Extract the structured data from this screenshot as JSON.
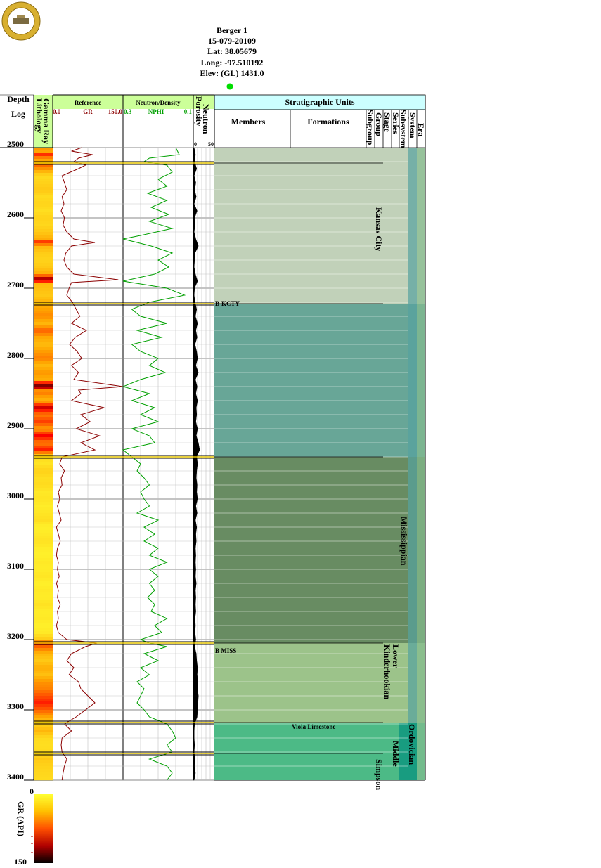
{
  "header": {
    "lines": [
      "Berger 1",
      "15-079-20109",
      "Lat: 38.05679",
      "Long: -97.510192",
      "Elev: (GL) 1431.0"
    ],
    "status_dot_color": "#00dd00"
  },
  "logo": {
    "icon": "survey-seal-icon",
    "color": "#d8b030"
  },
  "columns": {
    "depth": "Depth",
    "log": "Log",
    "lithology": "Lithology",
    "gamma_ray": "Gamma Ray",
    "reference": "Reference",
    "neutron_density": "Neutron/Density",
    "porosity": "Porosity",
    "neutron": "Neutron",
    "strat_units": "Stratigraphic Units",
    "members": "Members",
    "formations": "Formations",
    "subgroup": "Subgroup",
    "group": "Group",
    "stage": "Stage",
    "series": "Series",
    "subsystem": "Subsystem",
    "system": "System",
    "era": "Era"
  },
  "scales": {
    "gr": {
      "min": "0.0",
      "label": "GR",
      "max": "150.0",
      "color": "#8b0000"
    },
    "nphi": {
      "min": "0.3",
      "label": "NPHI",
      "max": "-0.1",
      "color": "#00a000"
    },
    "porosity": {
      "min": "0",
      "max": "50"
    }
  },
  "chart_data": {
    "type": "line",
    "depth_range": [
      2500,
      3400
    ],
    "depth_ticks": [
      "2500",
      "2600",
      "2700",
      "2800",
      "2900",
      "3000",
      "3100",
      "3200",
      "3300",
      "3400"
    ],
    "tops": [
      {
        "depth": 2711,
        "label": "B-KCTY"
      },
      {
        "depth": 3205,
        "label": "B MISS"
      }
    ],
    "intervals": [
      {
        "top": 2500,
        "bottom": 2722,
        "color": "#c1d1b9"
      },
      {
        "top": 2722,
        "bottom": 2940,
        "color": "#68a697"
      },
      {
        "top": 2940,
        "bottom": 3205,
        "color": "#688c62"
      },
      {
        "top": 3205,
        "bottom": 3318,
        "color": "#9cc38a"
      },
      {
        "top": 3318,
        "bottom": 3400,
        "color": "#4cba86"
      }
    ],
    "units": {
      "subgroup": [
        {
          "top": 2500,
          "bottom": 2722,
          "label": "Kansas City"
        },
        {
          "top": 3318,
          "bottom": 3400,
          "label": "Simpson"
        }
      ],
      "formations": [
        {
          "top": 3318,
          "bottom": 3322,
          "label": "Viola Limestone"
        }
      ],
      "stage": [
        {
          "top": 3205,
          "bottom": 3318,
          "label": "Kinderhookian"
        }
      ],
      "series": [
        {
          "top": 3205,
          "bottom": 3240,
          "label": "Lower"
        },
        {
          "top": 3342,
          "bottom": 3400,
          "label": "Middle"
        }
      ],
      "subsystem": [
        {
          "top": 3025,
          "bottom": 3100,
          "label": "Mississippian"
        }
      ],
      "system": [
        {
          "top": 3318,
          "bottom": 3400,
          "label": "Ordovician"
        }
      ]
    },
    "colorbar": {
      "label": "GR (API)",
      "min": "0",
      "max": "150"
    },
    "gr_profile": [
      [
        2500,
        62
      ],
      [
        2505,
        40
      ],
      [
        2510,
        85
      ],
      [
        2515,
        55
      ],
      [
        2520,
        45
      ],
      [
        2525,
        70
      ],
      [
        2530,
        55
      ],
      [
        2540,
        20
      ],
      [
        2550,
        25
      ],
      [
        2560,
        30
      ],
      [
        2570,
        20
      ],
      [
        2580,
        24
      ],
      [
        2590,
        18
      ],
      [
        2600,
        25
      ],
      [
        2610,
        22
      ],
      [
        2620,
        30
      ],
      [
        2630,
        45
      ],
      [
        2635,
        90
      ],
      [
        2640,
        40
      ],
      [
        2650,
        28
      ],
      [
        2660,
        24
      ],
      [
        2670,
        30
      ],
      [
        2680,
        45
      ],
      [
        2688,
        140
      ],
      [
        2692,
        40
      ],
      [
        2700,
        35
      ],
      [
        2710,
        30
      ],
      [
        2720,
        42
      ],
      [
        2730,
        50
      ],
      [
        2740,
        58
      ],
      [
        2750,
        40
      ],
      [
        2760,
        72
      ],
      [
        2770,
        48
      ],
      [
        2780,
        36
      ],
      [
        2790,
        52
      ],
      [
        2800,
        62
      ],
      [
        2810,
        40
      ],
      [
        2820,
        55
      ],
      [
        2830,
        45
      ],
      [
        2840,
        150
      ],
      [
        2845,
        55
      ],
      [
        2850,
        60
      ],
      [
        2860,
        40
      ],
      [
        2870,
        110
      ],
      [
        2880,
        60
      ],
      [
        2890,
        80
      ],
      [
        2900,
        50
      ],
      [
        2910,
        100
      ],
      [
        2920,
        60
      ],
      [
        2930,
        90
      ],
      [
        2940,
        20
      ],
      [
        2950,
        15
      ],
      [
        2960,
        25
      ],
      [
        2970,
        18
      ],
      [
        2980,
        20
      ],
      [
        2990,
        12
      ],
      [
        3000,
        15
      ],
      [
        3010,
        10
      ],
      [
        3020,
        14
      ],
      [
        3030,
        18
      ],
      [
        3040,
        8
      ],
      [
        3050,
        12
      ],
      [
        3060,
        16
      ],
      [
        3070,
        10
      ],
      [
        3080,
        8
      ],
      [
        3090,
        12
      ],
      [
        3100,
        10
      ],
      [
        3110,
        14
      ],
      [
        3120,
        8
      ],
      [
        3130,
        12
      ],
      [
        3140,
        10
      ],
      [
        3150,
        16
      ],
      [
        3160,
        10
      ],
      [
        3170,
        12
      ],
      [
        3180,
        8
      ],
      [
        3190,
        12
      ],
      [
        3200,
        30
      ],
      [
        3205,
        95
      ],
      [
        3210,
        70
      ],
      [
        3220,
        40
      ],
      [
        3230,
        30
      ],
      [
        3240,
        45
      ],
      [
        3250,
        35
      ],
      [
        3260,
        55
      ],
      [
        3270,
        60
      ],
      [
        3280,
        75
      ],
      [
        3290,
        90
      ],
      [
        3300,
        70
      ],
      [
        3310,
        50
      ],
      [
        3320,
        25
      ],
      [
        3330,
        40
      ],
      [
        3340,
        20
      ],
      [
        3350,
        18
      ],
      [
        3360,
        20
      ],
      [
        3370,
        30
      ],
      [
        3380,
        25
      ],
      [
        3390,
        22
      ],
      [
        3400,
        20
      ]
    ],
    "nphi_profile": [
      [
        2500,
        0.0
      ],
      [
        2510,
        -0.02
      ],
      [
        2515,
        0.15
      ],
      [
        2520,
        0.18
      ],
      [
        2525,
        0.05
      ],
      [
        2535,
        0.02
      ],
      [
        2545,
        0.1
      ],
      [
        2555,
        0.05
      ],
      [
        2565,
        0.16
      ],
      [
        2575,
        0.05
      ],
      [
        2585,
        0.14
      ],
      [
        2595,
        0.04
      ],
      [
        2605,
        0.15
      ],
      [
        2615,
        0.02
      ],
      [
        2625,
        0.2
      ],
      [
        2630,
        0.3
      ],
      [
        2640,
        0.14
      ],
      [
        2650,
        0.02
      ],
      [
        2660,
        0.1
      ],
      [
        2670,
        0.04
      ],
      [
        2680,
        0.12
      ],
      [
        2690,
        0.3
      ],
      [
        2700,
        0.05
      ],
      [
        2710,
        -0.05
      ],
      [
        2720,
        0.15
      ],
      [
        2730,
        0.25
      ],
      [
        2740,
        0.2
      ],
      [
        2750,
        0.05
      ],
      [
        2760,
        0.22
      ],
      [
        2770,
        0.08
      ],
      [
        2780,
        0.25
      ],
      [
        2790,
        0.2
      ],
      [
        2800,
        0.1
      ],
      [
        2810,
        0.15
      ],
      [
        2820,
        0.06
      ],
      [
        2830,
        0.2
      ],
      [
        2840,
        0.3
      ],
      [
        2850,
        0.15
      ],
      [
        2860,
        0.25
      ],
      [
        2870,
        0.12
      ],
      [
        2880,
        0.2
      ],
      [
        2890,
        0.1
      ],
      [
        2900,
        0.25
      ],
      [
        2910,
        0.15
      ],
      [
        2920,
        0.12
      ],
      [
        2930,
        0.3
      ],
      [
        2940,
        0.25
      ],
      [
        2950,
        0.2
      ],
      [
        2960,
        0.22
      ],
      [
        2970,
        0.18
      ],
      [
        2980,
        0.15
      ],
      [
        2990,
        0.2
      ],
      [
        3000,
        0.18
      ],
      [
        3010,
        0.15
      ],
      [
        3020,
        0.22
      ],
      [
        3030,
        0.1
      ],
      [
        3040,
        0.18
      ],
      [
        3050,
        0.12
      ],
      [
        3060,
        0.18
      ],
      [
        3070,
        0.1
      ],
      [
        3080,
        0.15
      ],
      [
        3090,
        0.05
      ],
      [
        3100,
        0.15
      ],
      [
        3110,
        0.1
      ],
      [
        3120,
        0.15
      ],
      [
        3130,
        0.12
      ],
      [
        3140,
        0.16
      ],
      [
        3150,
        0.12
      ],
      [
        3160,
        0.14
      ],
      [
        3170,
        0.05
      ],
      [
        3180,
        0.12
      ],
      [
        3190,
        0.08
      ],
      [
        3200,
        0.2
      ],
      [
        3205,
        0.15
      ],
      [
        3210,
        0.05
      ],
      [
        3220,
        0.18
      ],
      [
        3230,
        0.1
      ],
      [
        3240,
        0.2
      ],
      [
        3250,
        0.15
      ],
      [
        3260,
        0.22
      ],
      [
        3270,
        0.18
      ],
      [
        3280,
        0.2
      ],
      [
        3290,
        0.22
      ],
      [
        3300,
        0.18
      ],
      [
        3310,
        0.15
      ],
      [
        3320,
        0.05
      ],
      [
        3330,
        0.02
      ],
      [
        3340,
        0.0
      ],
      [
        3350,
        0.05
      ],
      [
        3360,
        0.02
      ],
      [
        3370,
        0.15
      ],
      [
        3380,
        0.05
      ],
      [
        3390,
        0.02
      ],
      [
        3400,
        0.05
      ]
    ],
    "porosity_profile": [
      [
        2500,
        2
      ],
      [
        2510,
        5
      ],
      [
        2520,
        3
      ],
      [
        2530,
        8
      ],
      [
        2540,
        2
      ],
      [
        2550,
        6
      ],
      [
        2560,
        3
      ],
      [
        2570,
        7
      ],
      [
        2580,
        2
      ],
      [
        2590,
        9
      ],
      [
        2600,
        3
      ],
      [
        2610,
        4
      ],
      [
        2620,
        2
      ],
      [
        2630,
        6
      ],
      [
        2640,
        12
      ],
      [
        2650,
        4
      ],
      [
        2660,
        3
      ],
      [
        2670,
        2
      ],
      [
        2680,
        5
      ],
      [
        2690,
        10
      ],
      [
        2700,
        3
      ],
      [
        2710,
        2
      ],
      [
        2720,
        4
      ],
      [
        2730,
        8
      ],
      [
        2740,
        5
      ],
      [
        2750,
        10
      ],
      [
        2760,
        6
      ],
      [
        2770,
        9
      ],
      [
        2780,
        4
      ],
      [
        2790,
        8
      ],
      [
        2800,
        10
      ],
      [
        2810,
        6
      ],
      [
        2820,
        12
      ],
      [
        2830,
        5
      ],
      [
        2840,
        9
      ],
      [
        2850,
        6
      ],
      [
        2860,
        10
      ],
      [
        2870,
        7
      ],
      [
        2880,
        8
      ],
      [
        2890,
        6
      ],
      [
        2900,
        10
      ],
      [
        2910,
        7
      ],
      [
        2920,
        12
      ],
      [
        2930,
        15
      ],
      [
        2940,
        8
      ],
      [
        2950,
        10
      ],
      [
        2960,
        8
      ],
      [
        2970,
        7
      ],
      [
        2980,
        9
      ],
      [
        2990,
        8
      ],
      [
        3000,
        10
      ],
      [
        3010,
        6
      ],
      [
        3020,
        9
      ],
      [
        3030,
        5
      ],
      [
        3040,
        8
      ],
      [
        3050,
        6
      ],
      [
        3060,
        7
      ],
      [
        3070,
        5
      ],
      [
        3080,
        6
      ],
      [
        3090,
        5
      ],
      [
        3100,
        6
      ],
      [
        3110,
        5
      ],
      [
        3120,
        7
      ],
      [
        3130,
        5
      ],
      [
        3140,
        6
      ],
      [
        3150,
        5
      ],
      [
        3160,
        6
      ],
      [
        3170,
        4
      ],
      [
        3180,
        5
      ],
      [
        3190,
        4
      ],
      [
        3200,
        6
      ],
      [
        3210,
        3
      ],
      [
        3220,
        7
      ],
      [
        3230,
        8
      ],
      [
        3240,
        10
      ],
      [
        3250,
        9
      ],
      [
        3260,
        11
      ],
      [
        3270,
        10
      ],
      [
        3280,
        12
      ],
      [
        3290,
        11
      ],
      [
        3300,
        10
      ],
      [
        3310,
        9
      ],
      [
        3320,
        3
      ],
      [
        3330,
        2
      ],
      [
        3340,
        2
      ],
      [
        3350,
        3
      ],
      [
        3360,
        2
      ],
      [
        3370,
        4
      ],
      [
        3380,
        3
      ],
      [
        3390,
        5
      ],
      [
        3400,
        2
      ]
    ]
  }
}
